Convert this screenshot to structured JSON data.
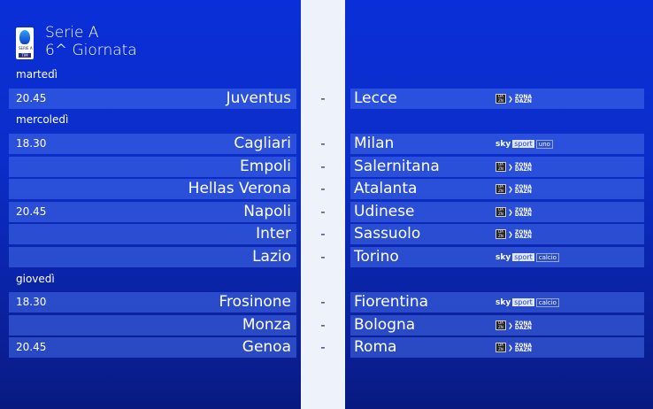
{
  "header": {
    "league": "Serie A",
    "round": "6^ Giornata",
    "logo_text": "SERIE A",
    "logo_sponsor": "TIM"
  },
  "days": [
    {
      "label": "martedì",
      "matches": [
        {
          "time": "20.45",
          "home": "Juventus",
          "away": "Lecce",
          "broadcaster": "dazn"
        }
      ]
    },
    {
      "label": "mercoledì",
      "matches": [
        {
          "time": "18.30",
          "home": "Cagliari",
          "away": "Milan",
          "broadcaster": "sky",
          "channel": "uno"
        },
        {
          "time": "",
          "home": "Empoli",
          "away": "Salernitana",
          "broadcaster": "dazn"
        },
        {
          "time": "",
          "home": "Hellas Verona",
          "away": "Atalanta",
          "broadcaster": "dazn"
        },
        {
          "time": "20.45",
          "home": "Napoli",
          "away": "Udinese",
          "broadcaster": "dazn"
        },
        {
          "time": "",
          "home": "Inter",
          "away": "Sassuolo",
          "broadcaster": "dazn"
        },
        {
          "time": "",
          "home": "Lazio",
          "away": "Torino",
          "broadcaster": "sky",
          "channel": "calcio"
        }
      ]
    },
    {
      "label": "giovedì",
      "matches": [
        {
          "time": "18.30",
          "home": "Frosinone",
          "away": "Fiorentina",
          "broadcaster": "sky",
          "channel": "calcio"
        },
        {
          "time": "",
          "home": "Monza",
          "away": "Bologna",
          "broadcaster": "dazn"
        },
        {
          "time": "20.45",
          "home": "Genoa",
          "away": "Roma",
          "broadcaster": "dazn"
        }
      ]
    }
  ],
  "labels": {
    "separator": "-",
    "dazn_box": "DA ZN",
    "zona": "ZONA",
    "dazn": "DAZN",
    "sky": "sky",
    "sport": "sport"
  }
}
